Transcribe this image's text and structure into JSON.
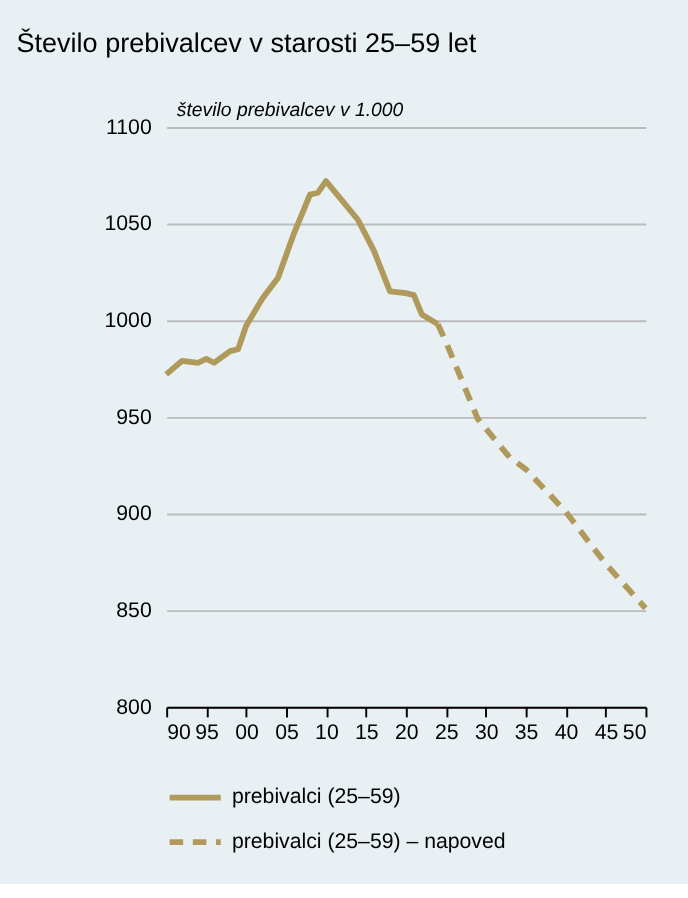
{
  "chart_data": {
    "type": "line",
    "title": "Število prebivalcev v starosti 25–59 let",
    "ylabel": "število prebivalcev v 1.000",
    "series": [
      {
        "name": "prebivalci (25–59)",
        "color": "#b09a5b",
        "line_style": "solid",
        "x": [
          1990,
          1992,
          1994,
          1995,
          1996,
          1998,
          1999,
          2000,
          2002,
          2004,
          2006,
          2008,
          2009,
          2010,
          2011,
          2012,
          2014,
          2016,
          2018,
          2020,
          2021,
          2022,
          2024
        ],
        "values": [
          972,
          979,
          978,
          980,
          978,
          984,
          985,
          997,
          1011,
          1022,
          1045,
          1065,
          1066,
          1072,
          1067,
          1062,
          1052,
          1036,
          1015,
          1014,
          1013,
          1003,
          998
        ]
      },
      {
        "name": "prebivalci (25–59) – napoved",
        "color": "#b09a5b",
        "line_style": "dashed",
        "x": [
          2024,
          2025,
          2029,
          2033,
          2035,
          2040,
          2045,
          2050
        ],
        "values": [
          998,
          989,
          949,
          929,
          923,
          901,
          874,
          851
        ]
      }
    ],
    "xlim": [
      1990,
      2050
    ],
    "ylim": [
      800,
      1100
    ],
    "xticks": [
      {
        "value": 1990,
        "label": "90"
      },
      {
        "value": 1995,
        "label": "95"
      },
      {
        "value": 2000,
        "label": "00"
      },
      {
        "value": 2005,
        "label": "05"
      },
      {
        "value": 2010,
        "label": "10"
      },
      {
        "value": 2015,
        "label": "15"
      },
      {
        "value": 2020,
        "label": "20"
      },
      {
        "value": 2025,
        "label": "25"
      },
      {
        "value": 2030,
        "label": "30"
      },
      {
        "value": 2035,
        "label": "35"
      },
      {
        "value": 2040,
        "label": "40"
      },
      {
        "value": 2045,
        "label": "45"
      },
      {
        "value": 2050,
        "label": "50"
      }
    ],
    "yticks": [
      800,
      850,
      900,
      950,
      1000,
      1050,
      1100
    ],
    "grid": "y",
    "legend": "bottom",
    "marker": "none"
  }
}
